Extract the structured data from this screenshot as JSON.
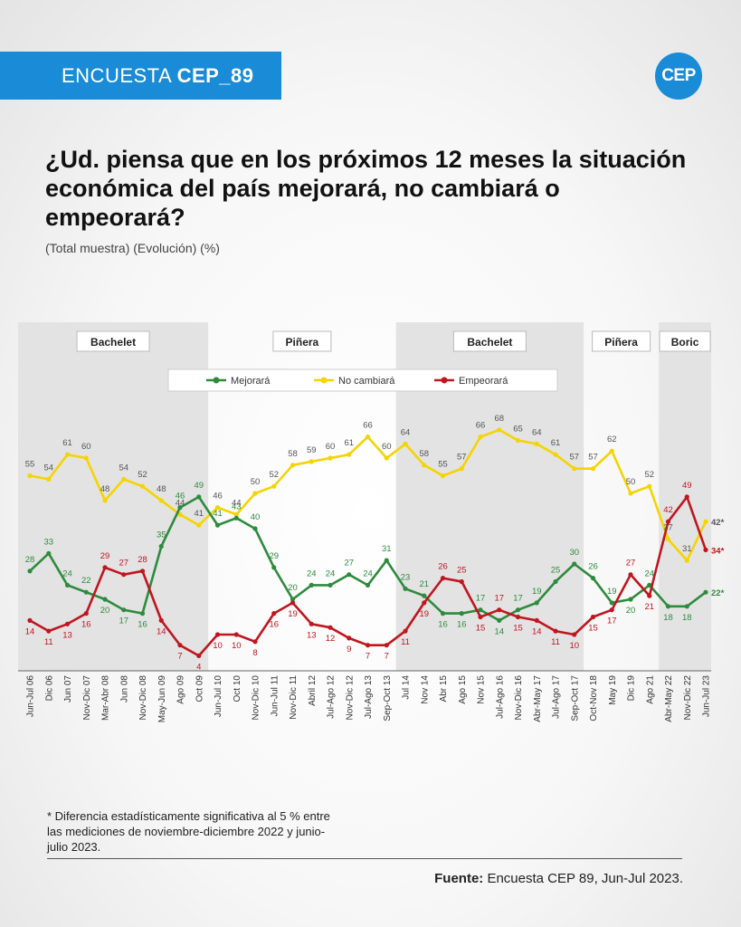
{
  "header": {
    "banner_prefix": "ENCUESTA ",
    "banner_bold": "CEP_89",
    "logo": "CEP",
    "title": "¿Ud. piensa que en los próximos 12 meses la situación económica del país mejorará, no cambiará o empeorará?",
    "subtitle": "(Total muestra) (Evolución) (%)"
  },
  "chart_data": {
    "type": "line",
    "title": "",
    "xlabel": "",
    "ylabel": "",
    "x": [
      "Jun-Jul 06",
      "Dic 06",
      "Jun 07",
      "Nov-Dic 07",
      "Mar-Abr 08",
      "Jun 08",
      "Nov-Dic 08",
      "May-Jun 09",
      "Ago 09",
      "Oct 09",
      "Jun-Jul 10",
      "Oct 10",
      "Nov-Dic 10",
      "Jun-Jul 11",
      "Nov-Dic 11",
      "Abril 12",
      "Jul-Ago 12",
      "Nov-Dic 12",
      "Jul-Ago 13",
      "Sep-Oct 13",
      "Jul 14",
      "Nov 14",
      "Abr 15",
      "Ago 15",
      "Nov 15",
      "Jul-Ago 16",
      "Nov-Dic 16",
      "Abr-May 17",
      "Jul-Ago 17",
      "Sep-Oct 17",
      "Oct-Nov 18",
      "May 19",
      "Dic 19",
      "Ago 21",
      "Abr-May 22",
      "Nov-Dic 22",
      "Jun-Jul 23"
    ],
    "series": [
      {
        "name": "Mejorará",
        "color": "#2e8b3e",
        "values": [
          28,
          33,
          24,
          22,
          20,
          17,
          16,
          35,
          46,
          49,
          41,
          43,
          40,
          29,
          20,
          24,
          24,
          27,
          24,
          31,
          23,
          21,
          16,
          16,
          17,
          14,
          17,
          19,
          25,
          30,
          26,
          19,
          20,
          24,
          18,
          18,
          22
        ]
      },
      {
        "name": "No cambiará",
        "color": "#f5d400",
        "values": [
          55,
          54,
          61,
          60,
          48,
          54,
          52,
          48,
          44,
          41,
          46,
          44,
          50,
          52,
          58,
          59,
          60,
          61,
          66,
          60,
          64,
          58,
          55,
          57,
          66,
          68,
          65,
          64,
          61,
          57,
          57,
          62,
          50,
          52,
          37,
          31,
          42
        ]
      },
      {
        "name": "Empeorará",
        "color": "#c0161f",
        "values": [
          14,
          11,
          13,
          16,
          29,
          27,
          28,
          14,
          7,
          4,
          10,
          10,
          8,
          16,
          19,
          13,
          12,
          9,
          7,
          7,
          11,
          19,
          26,
          25,
          15,
          17,
          15,
          14,
          11,
          10,
          15,
          17,
          27,
          21,
          42,
          49,
          34
        ]
      }
    ],
    "last_labels": [
      "22*",
      "42*",
      "34*"
    ],
    "periods": [
      {
        "label": "Bachelet",
        "start": 0,
        "end": 9,
        "shaded": true
      },
      {
        "label": "Piñera",
        "start": 10,
        "end": 19,
        "shaded": false
      },
      {
        "label": "Bachelet",
        "start": 20,
        "end": 29,
        "shaded": true
      },
      {
        "label": "Piñera",
        "start": 30,
        "end": 33,
        "shaded": false
      },
      {
        "label": "Boric",
        "start": 34,
        "end": 36,
        "shaded": true
      }
    ],
    "legend_position": "top-center",
    "ylim": [
      0,
      75
    ],
    "grid": false
  },
  "footer": {
    "footnote": "* Diferencia estadísticamente significativa al 5 % entre las mediciones de noviembre-diciembre 2022 y junio-julio 2023.",
    "source_label": "Fuente:",
    "source_text": " Encuesta CEP 89, Jun-Jul 2023."
  }
}
